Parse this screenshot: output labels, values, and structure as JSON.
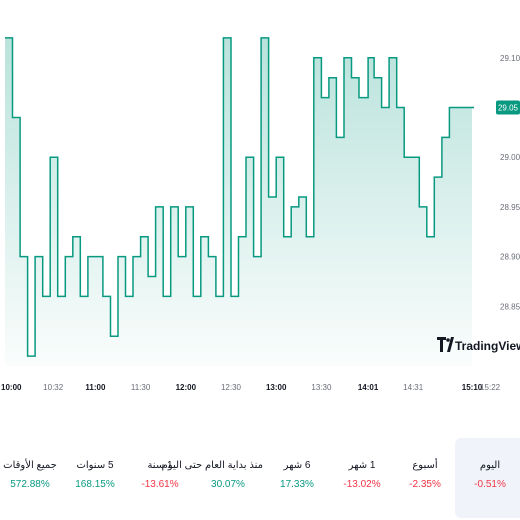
{
  "chart_data": {
    "type": "area",
    "x": [
      "10:00",
      "10:05",
      "10:10",
      "10:15",
      "10:20",
      "10:25",
      "10:30",
      "10:35",
      "10:40",
      "10:45",
      "10:50",
      "10:55",
      "11:00",
      "11:05",
      "11:10",
      "11:15",
      "11:20",
      "11:25",
      "11:30",
      "11:35",
      "11:40",
      "11:45",
      "11:50",
      "11:55",
      "12:00",
      "12:05",
      "12:10",
      "12:15",
      "12:20",
      "12:25",
      "12:30",
      "12:35",
      "12:40",
      "12:45",
      "12:50",
      "12:55",
      "13:00",
      "13:05",
      "13:10",
      "13:15",
      "13:20",
      "13:25",
      "13:30",
      "13:35",
      "13:40",
      "13:45",
      "13:50",
      "13:55",
      "14:01",
      "14:05",
      "14:10",
      "14:15",
      "14:20",
      "14:25",
      "14:31",
      "14:35",
      "14:40",
      "14:45",
      "14:50",
      "14:55",
      "15:00",
      "15:05",
      "15:10"
    ],
    "y": [
      29.12,
      29.04,
      28.9,
      28.8,
      28.9,
      28.86,
      29.0,
      28.86,
      28.9,
      28.92,
      28.86,
      28.9,
      28.9,
      28.86,
      28.82,
      28.9,
      28.86,
      28.9,
      28.92,
      28.88,
      28.95,
      28.86,
      28.95,
      28.9,
      28.95,
      28.86,
      28.92,
      28.9,
      28.86,
      29.12,
      28.86,
      28.92,
      29.0,
      28.9,
      29.12,
      28.96,
      29.0,
      28.92,
      28.95,
      28.96,
      28.92,
      29.1,
      29.06,
      29.08,
      29.02,
      29.1,
      29.08,
      29.06,
      29.1,
      29.08,
      29.05,
      29.1,
      29.05,
      29.0,
      29.0,
      28.95,
      28.92,
      28.98,
      29.02,
      29.05,
      29.05,
      29.05,
      29.05
    ],
    "x_ticks": [
      "10:00",
      "10:32",
      "11:00",
      "11:30",
      "12:00",
      "12:30",
      "13:00",
      "13:30",
      "14:01",
      "14:31",
      "15:10",
      "15:22"
    ],
    "y_ticks": [
      "29.10",
      "29.00",
      "28.95",
      "28.90",
      "28.85"
    ],
    "ylim": [
      28.79,
      29.13
    ],
    "last_price": "29.05",
    "colors": {
      "line": "#089981",
      "fill": "#089981"
    },
    "grid": false
  },
  "watermark": "TradingView",
  "performance": [
    {
      "label": "اليوم",
      "value": "-0.51%",
      "trend": "neg",
      "active": true
    },
    {
      "label": "أسبوع",
      "value": "-2.35%",
      "trend": "neg",
      "active": false
    },
    {
      "label": "1 شهر",
      "value": "-13.02%",
      "trend": "neg",
      "active": false
    },
    {
      "label": "6 شهر",
      "value": "17.33%",
      "trend": "pos",
      "active": false
    },
    {
      "label": "منذ بداية العام حتى اليوم",
      "value": "30.07%",
      "trend": "pos",
      "active": false
    },
    {
      "label": "1 سنة",
      "value": "-13.61%",
      "trend": "neg",
      "active": false
    },
    {
      "label": "5 سنوات",
      "value": "168.15%",
      "trend": "pos",
      "active": false
    },
    {
      "label": "جميع الأوقات",
      "value": "572.88%",
      "trend": "pos",
      "active": false
    }
  ]
}
